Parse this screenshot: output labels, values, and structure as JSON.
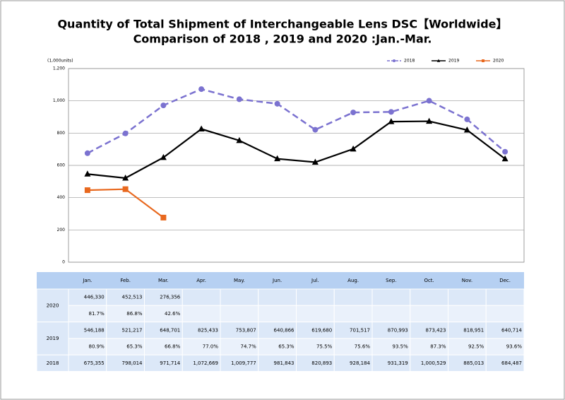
{
  "chart_data": {
    "type": "line",
    "title": [
      "Quantity of Total Shipment of Interchangeable Lens DSC【Worldwide】",
      "Comparison of 2018 , 2019 and 2020 :Jan.-Mar."
    ],
    "y_label": "(1,000units)",
    "categories": [
      "Jan.",
      "Feb.",
      "Mar.",
      "Apr.",
      "May.",
      "Jun.",
      "Jul.",
      "Aug.",
      "Sep.",
      "Oct.",
      "Nov.",
      "Dec."
    ],
    "ylim": [
      0,
      1200
    ],
    "yticks": [
      0,
      200,
      400,
      600,
      800,
      {
        "value": 1000,
        "label": "1,000"
      },
      {
        "value": 1200,
        "label": "1,200"
      }
    ],
    "grid": true,
    "legend": "top-right",
    "series": [
      {
        "name": "2018",
        "color": "#7b72d0",
        "dash": true,
        "marker": "circle",
        "values": [
          675.355,
          798.014,
          971.714,
          1072.669,
          1009.777,
          981.843,
          820.893,
          928.184,
          931.319,
          1000.529,
          885.013,
          684.487
        ]
      },
      {
        "name": "2019",
        "color": "#000000",
        "dash": false,
        "marker": "triangle",
        "values": [
          546.188,
          521.217,
          648.701,
          825.433,
          753.807,
          640.866,
          619.68,
          701.517,
          870.993,
          873.423,
          818.951,
          640.714
        ]
      },
      {
        "name": "2020",
        "color": "#e8681e",
        "dash": false,
        "marker": "square",
        "values": [
          446.33,
          452.513,
          276.356,
          null,
          null,
          null,
          null,
          null,
          null,
          null,
          null,
          null
        ]
      }
    ]
  },
  "table": {
    "rows": [
      {
        "label": "2020",
        "lines": [
          [
            "446,330",
            "452,513",
            "276,356"
          ],
          [
            "81.7%",
            "86.8%",
            "42.6%"
          ]
        ]
      },
      {
        "label": "2019",
        "lines": [
          [
            "546,188",
            "521,217",
            "648,701",
            "825,433",
            "753,807",
            "640,866",
            "619,680",
            "701,517",
            "870,993",
            "873,423",
            "818,951",
            "640,714"
          ],
          [
            "80.9%",
            "65.3%",
            "66.8%",
            "77.0%",
            "74.7%",
            "65.3%",
            "75.5%",
            "75.6%",
            "93.5%",
            "87.3%",
            "92.5%",
            "93.6%"
          ]
        ]
      },
      {
        "label": "2018",
        "lines": [
          [
            "675,355",
            "798,014",
            "971,714",
            "1,072,669",
            "1,009,777",
            "981,843",
            "820,893",
            "928,184",
            "931,319",
            "1,000,529",
            "885,013",
            "684,487"
          ]
        ]
      }
    ]
  }
}
